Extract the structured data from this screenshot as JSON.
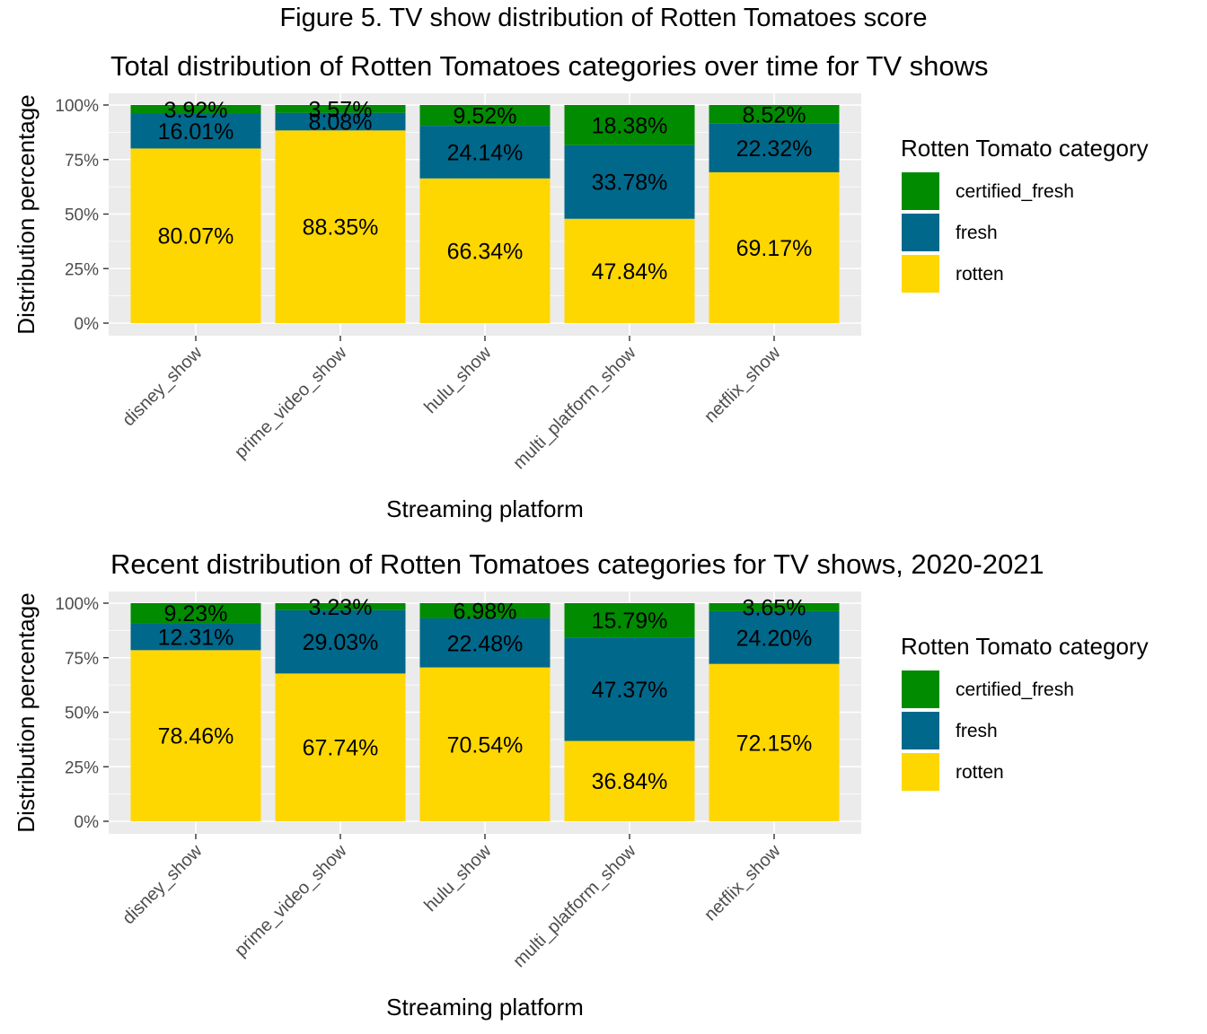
{
  "figure_title": "Figure 5. TV show distribution of Rotten Tomatoes score",
  "colors": {
    "certified_fresh": "#008B00",
    "fresh": "#00688B",
    "rotten": "#FFD700",
    "panel_bg": "#EBEBEB",
    "grid": "#FFFFFF"
  },
  "chart_data": [
    {
      "type": "bar",
      "stacked": true,
      "title": "Total distribution of Rotten Tomatoes categories over time for TV shows",
      "xlabel": "Streaming platform",
      "ylabel": "Distribution percentage",
      "ylim": [
        0,
        100
      ],
      "yticks": [
        "0%",
        "25%",
        "50%",
        "75%",
        "100%"
      ],
      "categories": [
        "disney_show",
        "prime_video_show",
        "hulu_show",
        "multi_platform_show",
        "netflix_show"
      ],
      "series": [
        {
          "name": "rotten",
          "values": [
            80.07,
            88.35,
            66.34,
            47.84,
            69.17
          ],
          "labels": [
            "80.07%",
            "88.35%",
            "66.34%",
            "47.84%",
            "69.17%"
          ]
        },
        {
          "name": "fresh",
          "values": [
            16.01,
            8.08,
            24.14,
            33.78,
            22.32
          ],
          "labels": [
            "16.01%",
            "8.08%",
            "24.14%",
            "33.78%",
            "22.32%"
          ]
        },
        {
          "name": "certified_fresh",
          "values": [
            3.92,
            3.57,
            9.52,
            18.38,
            8.52
          ],
          "labels": [
            "3.92%",
            "3.57%",
            "9.52%",
            "18.38%",
            "8.52%"
          ]
        }
      ],
      "legend": {
        "title": "Rotten Tomato category",
        "position": "right",
        "items": [
          "certified_fresh",
          "fresh",
          "rotten"
        ]
      }
    },
    {
      "type": "bar",
      "stacked": true,
      "title": "Recent distribution of Rotten Tomatoes categories for TV shows, 2020-2021",
      "xlabel": "Streaming platform",
      "ylabel": "Distribution percentage",
      "ylim": [
        0,
        100
      ],
      "yticks": [
        "0%",
        "25%",
        "50%",
        "75%",
        "100%"
      ],
      "categories": [
        "disney_show",
        "prime_video_show",
        "hulu_show",
        "multi_platform_show",
        "netflix_show"
      ],
      "series": [
        {
          "name": "rotten",
          "values": [
            78.46,
            67.74,
            70.54,
            36.84,
            72.15
          ],
          "labels": [
            "78.46%",
            "67.74%",
            "70.54%",
            "36.84%",
            "72.15%"
          ]
        },
        {
          "name": "fresh",
          "values": [
            12.31,
            29.03,
            22.48,
            47.37,
            24.2
          ],
          "labels": [
            "12.31%",
            "29.03%",
            "22.48%",
            "47.37%",
            "24.20%"
          ]
        },
        {
          "name": "certified_fresh",
          "values": [
            9.23,
            3.23,
            6.98,
            15.79,
            3.65
          ],
          "labels": [
            "9.23%",
            "3.23%",
            "6.98%",
            "15.79%",
            "3.65%"
          ]
        }
      ],
      "legend": {
        "title": "Rotten Tomato category",
        "position": "right",
        "items": [
          "certified_fresh",
          "fresh",
          "rotten"
        ]
      }
    }
  ]
}
